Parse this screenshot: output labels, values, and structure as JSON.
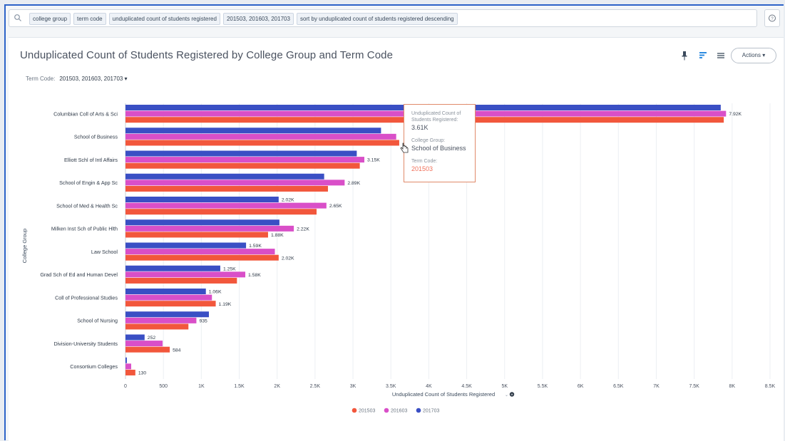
{
  "search": {
    "tokens": [
      "college group",
      "term code",
      "unduplicated count of students registered",
      "201503, 201603, 201703",
      "sort by unduplicated count of students registered descending"
    ]
  },
  "header": {
    "title": "Unduplicated Count of Students Registered by College Group and Term Code",
    "filter_label": "Term Code:",
    "filter_value": "201503, 201603, 201703 ▾",
    "actions_label": "Actions ▾"
  },
  "tooltip": {
    "measure_label": "Unduplicated Count of Students Registered:",
    "measure_value": "3.61K",
    "group_label": "College Group:",
    "group_value": "School of Business",
    "term_label": "Term Code:",
    "term_value": "201503"
  },
  "colors": {
    "s201503": "#f2573c",
    "s201603": "#d94fc8",
    "s201703": "#3a4fc4",
    "accent": "#2d63c8"
  },
  "chart_data": {
    "type": "bar",
    "orientation": "horizontal",
    "xlabel": "Unduplicated Count of Students Registered",
    "ylabel": "College Group",
    "xlim": [
      0,
      8500
    ],
    "xticks": [
      0,
      500,
      1000,
      1500,
      2000,
      2500,
      3000,
      3500,
      4000,
      4500,
      5000,
      5500,
      6000,
      6500,
      7000,
      7500,
      8000,
      8500
    ],
    "xtick_labels": [
      "0",
      "500",
      "1K",
      "1.5K",
      "2K",
      "2.5K",
      "3K",
      "3.5K",
      "4K",
      "4.5K",
      "5K",
      "5.5K",
      "6K",
      "6.5K",
      "7K",
      "7.5K",
      "8K",
      "8.5K"
    ],
    "grid": true,
    "legend_position": "bottom",
    "categories": [
      "Columbian Coll of Arts & Sci",
      "School of Business",
      "Elliott Schl of Intl Affairs",
      "School of Engin & App Sc",
      "School of Med & Health Sc",
      "Milken Inst Sch of Public Hlth",
      "Law School",
      "Grad Sch of Ed and Human Devel",
      "Coll of Professional Studies",
      "School of Nursing",
      "Division-University Students",
      "Consortium Colleges"
    ],
    "series": [
      {
        "name": "201703",
        "color": "#3a4fc4",
        "values": [
          7850,
          3370,
          3050,
          2620,
          2020,
          2030,
          1590,
          1250,
          1060,
          1100,
          252,
          18
        ],
        "labels": [
          "",
          "",
          "",
          "",
          "2.02K",
          "",
          "1.59K",
          "1.25K",
          "1.06K",
          "",
          "252",
          ""
        ]
      },
      {
        "name": "201603",
        "color": "#d94fc8",
        "values": [
          7920,
          3570,
          3150,
          2890,
          2650,
          2220,
          1970,
          1580,
          1140,
          935,
          490,
          75
        ],
        "labels": [
          "7.92K",
          "",
          "3.15K",
          "2.89K",
          "2.65K",
          "2.22K",
          "",
          "1.58K",
          "",
          "935",
          "",
          ""
        ]
      },
      {
        "name": "201503",
        "color": "#f2573c",
        "values": [
          7890,
          3610,
          3090,
          2670,
          2520,
          1880,
          2020,
          1470,
          1190,
          830,
          584,
          130
        ],
        "labels": [
          "",
          "",
          "",
          "",
          "",
          "1.88K",
          "2.02K",
          "",
          "1.19K",
          "",
          "584",
          "130"
        ]
      }
    ],
    "legend_order": [
      "201503",
      "201603",
      "201703"
    ]
  }
}
